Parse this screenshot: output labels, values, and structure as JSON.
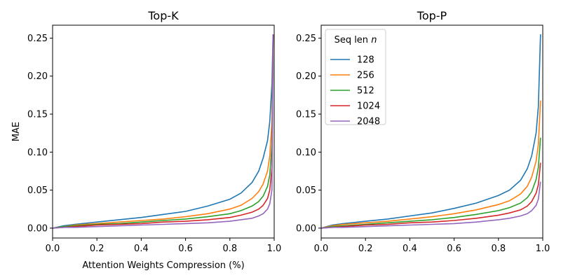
{
  "chart_data": [
    {
      "type": "line",
      "title": "Top-K",
      "xlabel": "Attention Weights Compression (%)",
      "ylabel": "MAE",
      "xlim": [
        0,
        1
      ],
      "ylim": [
        -0.013,
        0.267
      ],
      "xticks": [
        0.0,
        0.2,
        0.4,
        0.6,
        0.8,
        1.0
      ],
      "xtick_labels": [
        "0.0",
        "0.2",
        "0.4",
        "0.6",
        "0.8",
        "1.0"
      ],
      "yticks": [
        0.0,
        0.05,
        0.1,
        0.15,
        0.2,
        0.25
      ],
      "ytick_labels": [
        "0.00",
        "0.05",
        "0.10",
        "0.15",
        "0.20",
        "0.25"
      ],
      "grid": false,
      "series": [
        {
          "name": "128",
          "color": "#1f77b4",
          "x": [
            0,
            0.05,
            0.1,
            0.2,
            0.3,
            0.4,
            0.5,
            0.6,
            0.7,
            0.8,
            0.85,
            0.9,
            0.93,
            0.95,
            0.97,
            0.98,
            0.99,
            0.995
          ],
          "y": [
            0,
            0.003,
            0.005,
            0.008,
            0.011,
            0.014,
            0.018,
            0.022,
            0.029,
            0.038,
            0.046,
            0.06,
            0.075,
            0.092,
            0.115,
            0.14,
            0.19,
            0.255
          ]
        },
        {
          "name": "256",
          "color": "#ff7f0e",
          "x": [
            0,
            0.05,
            0.1,
            0.2,
            0.3,
            0.4,
            0.5,
            0.6,
            0.7,
            0.8,
            0.85,
            0.9,
            0.93,
            0.95,
            0.97,
            0.98,
            0.99,
            0.995
          ],
          "y": [
            0,
            0.002,
            0.004,
            0.006,
            0.008,
            0.01,
            0.012,
            0.015,
            0.019,
            0.025,
            0.03,
            0.039,
            0.048,
            0.058,
            0.075,
            0.095,
            0.14,
            0.255
          ]
        },
        {
          "name": "512",
          "color": "#2ca02c",
          "x": [
            0,
            0.05,
            0.1,
            0.2,
            0.3,
            0.4,
            0.5,
            0.6,
            0.7,
            0.8,
            0.85,
            0.9,
            0.93,
            0.95,
            0.97,
            0.98,
            0.99,
            0.995
          ],
          "y": [
            0,
            0.002,
            0.003,
            0.005,
            0.006,
            0.008,
            0.01,
            0.012,
            0.015,
            0.019,
            0.023,
            0.029,
            0.035,
            0.042,
            0.055,
            0.07,
            0.11,
            0.255
          ]
        },
        {
          "name": "1024",
          "color": "#d62728",
          "x": [
            0,
            0.05,
            0.1,
            0.2,
            0.3,
            0.4,
            0.5,
            0.6,
            0.7,
            0.8,
            0.85,
            0.9,
            0.93,
            0.95,
            0.97,
            0.98,
            0.99,
            0.995
          ],
          "y": [
            0,
            0.001,
            0.002,
            0.004,
            0.005,
            0.006,
            0.008,
            0.009,
            0.011,
            0.014,
            0.017,
            0.021,
            0.025,
            0.03,
            0.039,
            0.05,
            0.08,
            0.255
          ]
        },
        {
          "name": "2048",
          "color": "#9467bd",
          "x": [
            0,
            0.05,
            0.1,
            0.2,
            0.3,
            0.4,
            0.5,
            0.6,
            0.7,
            0.8,
            0.85,
            0.9,
            0.93,
            0.95,
            0.97,
            0.98,
            0.99,
            0.995
          ],
          "y": [
            0,
            0.001,
            0.001,
            0.002,
            0.003,
            0.004,
            0.005,
            0.006,
            0.007,
            0.009,
            0.011,
            0.013,
            0.016,
            0.019,
            0.025,
            0.032,
            0.05,
            0.255
          ]
        }
      ]
    },
    {
      "type": "line",
      "title": "Top-P",
      "xlabel": "",
      "ylabel": "",
      "xlim": [
        0,
        1
      ],
      "ylim": [
        -0.013,
        0.267
      ],
      "xticks": [
        0.0,
        0.2,
        0.4,
        0.6,
        0.8,
        1.0
      ],
      "xtick_labels": [
        "0.0",
        "0.2",
        "0.4",
        "0.6",
        "0.8",
        "1.0"
      ],
      "yticks": [
        0.0,
        0.05,
        0.1,
        0.15,
        0.2,
        0.25
      ],
      "ytick_labels": [
        "0.00",
        "0.05",
        "0.10",
        "0.15",
        "0.20",
        "0.25"
      ],
      "grid": false,
      "legend": {
        "title_text": "Seq len ",
        "title_var": "n",
        "placement": "upper-left"
      },
      "series": [
        {
          "name": "128",
          "color": "#1f77b4",
          "x": [
            0,
            0.05,
            0.1,
            0.2,
            0.3,
            0.4,
            0.5,
            0.6,
            0.7,
            0.8,
            0.85,
            0.9,
            0.93,
            0.95,
            0.97,
            0.98,
            0.99
          ],
          "y": [
            0,
            0.004,
            0.006,
            0.009,
            0.012,
            0.016,
            0.02,
            0.026,
            0.033,
            0.043,
            0.05,
            0.063,
            0.078,
            0.095,
            0.125,
            0.16,
            0.255
          ]
        },
        {
          "name": "256",
          "color": "#ff7f0e",
          "x": [
            0,
            0.05,
            0.1,
            0.2,
            0.3,
            0.4,
            0.5,
            0.6,
            0.7,
            0.8,
            0.85,
            0.9,
            0.93,
            0.95,
            0.97,
            0.98,
            0.99
          ],
          "y": [
            0,
            0.003,
            0.005,
            0.007,
            0.009,
            0.012,
            0.015,
            0.019,
            0.024,
            0.031,
            0.036,
            0.045,
            0.055,
            0.067,
            0.088,
            0.11,
            0.168
          ]
        },
        {
          "name": "512",
          "color": "#2ca02c",
          "x": [
            0,
            0.05,
            0.1,
            0.2,
            0.3,
            0.4,
            0.5,
            0.6,
            0.7,
            0.8,
            0.85,
            0.9,
            0.93,
            0.95,
            0.97,
            0.98,
            0.99
          ],
          "y": [
            0,
            0.002,
            0.003,
            0.005,
            0.007,
            0.009,
            0.011,
            0.014,
            0.018,
            0.023,
            0.027,
            0.033,
            0.04,
            0.048,
            0.064,
            0.08,
            0.119
          ]
        },
        {
          "name": "1024",
          "color": "#d62728",
          "x": [
            0,
            0.05,
            0.1,
            0.2,
            0.3,
            0.4,
            0.5,
            0.6,
            0.7,
            0.8,
            0.85,
            0.9,
            0.93,
            0.95,
            0.97,
            0.98,
            0.99
          ],
          "y": [
            0,
            0.001,
            0.002,
            0.004,
            0.005,
            0.007,
            0.008,
            0.01,
            0.013,
            0.017,
            0.02,
            0.024,
            0.029,
            0.035,
            0.046,
            0.057,
            0.086
          ]
        },
        {
          "name": "2048",
          "color": "#9467bd",
          "x": [
            0,
            0.05,
            0.1,
            0.2,
            0.3,
            0.4,
            0.5,
            0.6,
            0.7,
            0.8,
            0.85,
            0.9,
            0.93,
            0.95,
            0.97,
            0.98,
            0.99
          ],
          "y": [
            0,
            0.001,
            0.001,
            0.002,
            0.003,
            0.004,
            0.005,
            0.006,
            0.008,
            0.011,
            0.013,
            0.016,
            0.019,
            0.023,
            0.03,
            0.038,
            0.061
          ]
        }
      ]
    }
  ]
}
